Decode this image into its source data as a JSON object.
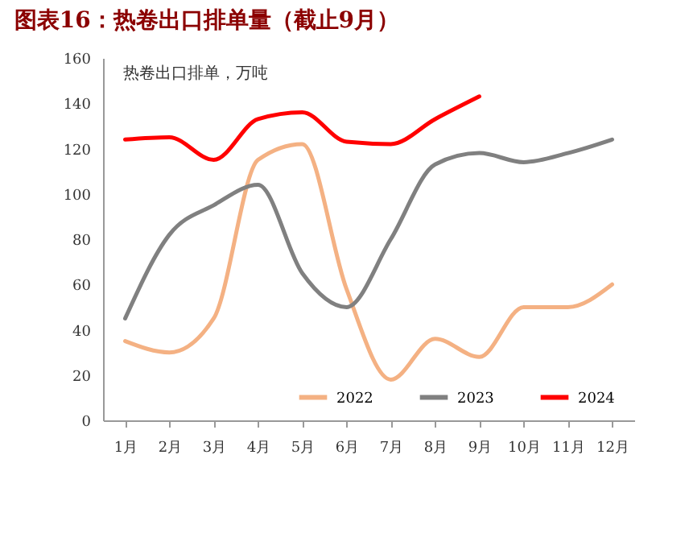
{
  "chart_data": {
    "type": "line",
    "title": "图表16：热卷出口排单量（截止9月）",
    "ylabel": "热卷出口排单，万吨",
    "categories": [
      "1月",
      "2月",
      "3月",
      "4月",
      "5月",
      "6月",
      "7月",
      "8月",
      "9月",
      "10月",
      "11月",
      "12月"
    ],
    "series": [
      {
        "name": "2022",
        "color": "#f4b183",
        "values": [
          35,
          30,
          45,
          115,
          122,
          58,
          18,
          36,
          28,
          50,
          50,
          60
        ]
      },
      {
        "name": "2023",
        "color": "#808080",
        "values": [
          45,
          82,
          95,
          104,
          65,
          50,
          80,
          113,
          118,
          114,
          118,
          124
        ]
      },
      {
        "name": "2024",
        "color": "#ff0000",
        "values": [
          124,
          125,
          115,
          133,
          136,
          123,
          122,
          133,
          143,
          null,
          null,
          null
        ]
      }
    ],
    "ylim": [
      0,
      160
    ],
    "yticks": [
      0,
      20,
      40,
      60,
      80,
      100,
      120,
      140,
      160
    ],
    "grid": false,
    "legend": "bottom",
    "marker": "none",
    "line_style": "solid"
  }
}
